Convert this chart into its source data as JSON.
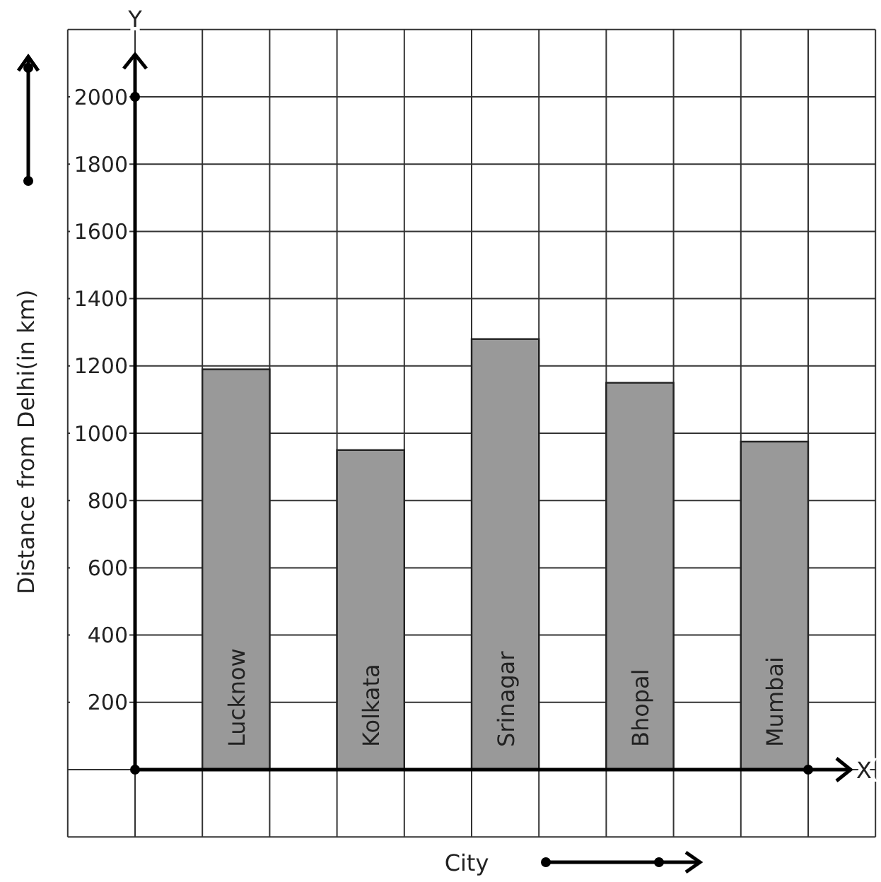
{
  "chart_data": {
    "type": "bar",
    "xlabel": "City",
    "ylabel": "Distance from Delhi(in km)",
    "categories": [
      "Lucknow",
      "Kolkata",
      "Srinagar",
      "Bhopal",
      "Mumbai"
    ],
    "values": [
      1190,
      950,
      1280,
      1150,
      975
    ],
    "color": "#999999",
    "ylim": [
      0,
      2000
    ],
    "yticks": [
      200,
      400,
      600,
      800,
      1000,
      1200,
      1400,
      1600,
      1800,
      2000
    ],
    "grid": true,
    "annotations": [
      "Y",
      "X"
    ]
  }
}
